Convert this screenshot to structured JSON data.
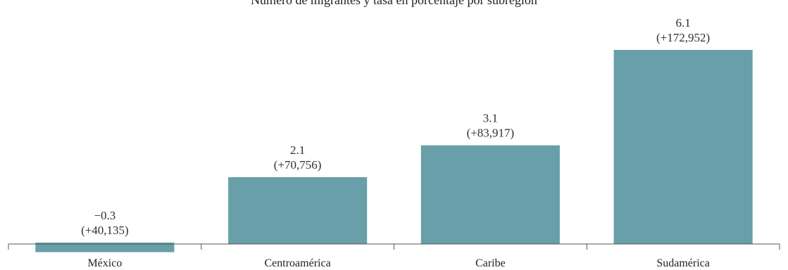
{
  "chart_data": {
    "type": "bar",
    "title": "Número de migrantes y tasa en porcentaje por subregión",
    "categories": [
      "México",
      "Centroamérica",
      "Caribe",
      "Sudamérica"
    ],
    "values": [
      -0.3,
      2.1,
      3.1,
      6.1
    ],
    "value_labels": [
      "−0.3",
      "2.1",
      "3.1",
      "6.1"
    ],
    "change_labels": [
      "(+40,135)",
      "(+70,756)",
      "(+83,917)",
      "(+172,952)"
    ],
    "xlabel": "",
    "ylabel": "",
    "ylim": [
      -0.3,
      6.1
    ],
    "grid": false,
    "legend": "none",
    "bar_color": "#689fa8"
  }
}
